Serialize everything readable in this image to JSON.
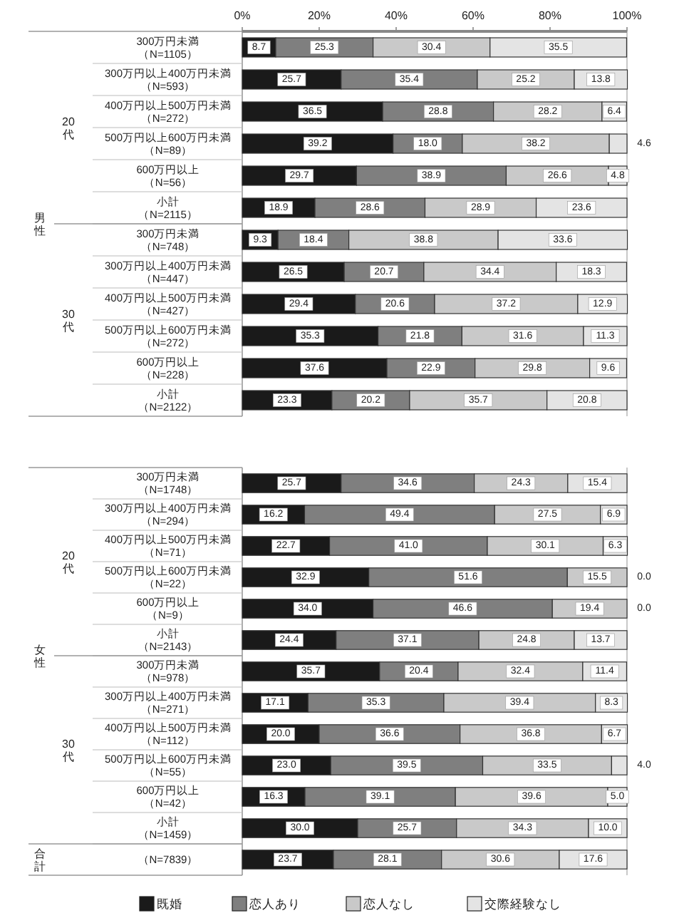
{
  "chart_data": [
    {
      "type": "bar",
      "orientation": "horizontal",
      "stacked": true,
      "categories": [
        "300万円未満（N=1105）",
        "300万円以上400万円未満（N=593）",
        "400万円以上500万円未満（N=272）",
        "500万円以上600万円未満（N=89）",
        "600万円以上（N=56）",
        "小計（N=2115）",
        "300万円未満（N=748）",
        "300万円以上400万円未満（N=447）",
        "400万円以上500万円未満（N=427）",
        "500万円以上600万円未満（N=272）",
        "600万円以上（N=228）",
        "小計（N=2122）"
      ],
      "series": [
        {
          "color": "#1a1a1a",
          "values": [
            8.7,
            25.7,
            36.5,
            39.2,
            29.7,
            18.9,
            9.3,
            26.5,
            29.4,
            35.3,
            37.6,
            23.3
          ],
          "value_labels": [
            "8.7",
            "25.7",
            "36.5",
            "39.2",
            "29.7",
            "18.9",
            "9.3",
            "26.5",
            "29.4",
            "35.3",
            "37.6",
            "23.3"
          ]
        },
        {
          "color": "#7f7f7f",
          "values": [
            25.3,
            35.4,
            28.8,
            18.0,
            38.9,
            28.6,
            18.4,
            20.7,
            20.6,
            21.8,
            22.9,
            20.2
          ],
          "value_labels": [
            "25.3",
            "35.4",
            "28.8",
            "18.0",
            "38.9",
            "28.6",
            "18.4",
            "20.7",
            "20.6",
            "21.8",
            "22.9",
            "20.2"
          ]
        },
        {
          "color": "#c9c9c9",
          "values": [
            30.4,
            25.2,
            28.2,
            38.2,
            26.6,
            28.9,
            38.8,
            34.4,
            37.2,
            31.6,
            29.8,
            35.7
          ],
          "value_labels": [
            "30.4",
            "25.2",
            "28.2",
            "38.2",
            "26.6",
            "28.9",
            "38.8",
            "34.4",
            "37.2",
            "31.6",
            "29.8",
            "35.7"
          ]
        },
        {
          "color": "#e4e4e4",
          "values": [
            35.5,
            13.8,
            6.4,
            4.6,
            4.8,
            23.6,
            33.6,
            18.3,
            12.9,
            11.3,
            9.6,
            20.8
          ],
          "value_labels": [
            "35.5",
            "13.8",
            "6.4",
            "4.6",
            "4.8",
            "23.6",
            "33.6",
            "18.3",
            "12.9",
            "11.3",
            "9.6",
            "20.8"
          ]
        }
      ],
      "xlim": [
        0,
        100
      ],
      "xticks": [
        {
          "value": 0,
          "label": "0%"
        },
        {
          "value": 20,
          "label": "20%"
        },
        {
          "value": 40,
          "label": "40%"
        },
        {
          "value": 60,
          "label": "60%"
        },
        {
          "value": 80,
          "label": "80%"
        },
        {
          "value": 100,
          "label": "100%"
        }
      ],
      "annotations": [
        "男性",
        "20代",
        "30代"
      ]
    },
    {
      "type": "bar",
      "orientation": "horizontal",
      "stacked": true,
      "categories": [
        "300万円未満（N=1748）",
        "300万円以上400万円未満（N=294）",
        "400万円以上500万円未満（N=71）",
        "500万円以上600万円未満（N=22）",
        "600万円以上（N=9）",
        "小計（N=2143）",
        "300万円未満（N=978）",
        "300万円以上400万円未満（N=271）",
        "400万円以上500万円未満（N=112）",
        "500万円以上600万円未満（N=55）",
        "600万円以上（N=42）",
        "小計（N=1459）",
        "（N=7839）"
      ],
      "series": [
        {
          "name": "既婚",
          "color": "#1a1a1a",
          "values": [
            25.7,
            16.2,
            22.7,
            32.9,
            34.0,
            24.4,
            35.7,
            17.1,
            20.0,
            23.0,
            16.3,
            30.0,
            23.7
          ],
          "value_labels": [
            "25.7",
            "16.2",
            "22.7",
            "32.9",
            "34.0",
            "24.4",
            "35.7",
            "17.1",
            "20.0",
            "23.0",
            "16.3",
            "30.0",
            "23.7"
          ]
        },
        {
          "name": "恋人あり",
          "color": "#7f7f7f",
          "values": [
            34.6,
            49.4,
            41.0,
            51.6,
            46.6,
            37.1,
            20.4,
            35.3,
            36.6,
            39.5,
            39.1,
            25.7,
            28.1
          ],
          "value_labels": [
            "34.6",
            "49.4",
            "41.0",
            "51.6",
            "46.6",
            "37.1",
            "20.4",
            "35.3",
            "36.6",
            "39.5",
            "39.1",
            "25.7",
            "28.1"
          ]
        },
        {
          "name": "恋人なし",
          "color": "#c9c9c9",
          "values": [
            24.3,
            27.5,
            30.1,
            15.5,
            19.4,
            24.8,
            32.4,
            39.4,
            36.8,
            33.5,
            39.6,
            34.3,
            30.6
          ],
          "value_labels": [
            "24.3",
            "27.5",
            "30.1",
            "15.5",
            "19.4",
            "24.8",
            "32.4",
            "39.4",
            "36.8",
            "33.5",
            "39.6",
            "34.3",
            "30.6"
          ]
        },
        {
          "name": "交際経験なし",
          "color": "#e4e4e4",
          "values": [
            15.4,
            6.9,
            6.3,
            0.0,
            0.0,
            13.7,
            11.4,
            8.3,
            6.7,
            4.0,
            5.0,
            10.0,
            17.6
          ],
          "value_labels": [
            "15.4",
            "6.9",
            "6.3",
            "0.0",
            "0.0",
            "13.7",
            "11.4",
            "8.3",
            "6.7",
            "4.0",
            "5.0",
            "10.0",
            "17.6"
          ]
        }
      ],
      "xlim": [
        0,
        100
      ],
      "tick_labels": false,
      "legend": "bottom",
      "annotations": [
        "女性",
        "20代",
        "30代",
        "合計"
      ]
    }
  ]
}
